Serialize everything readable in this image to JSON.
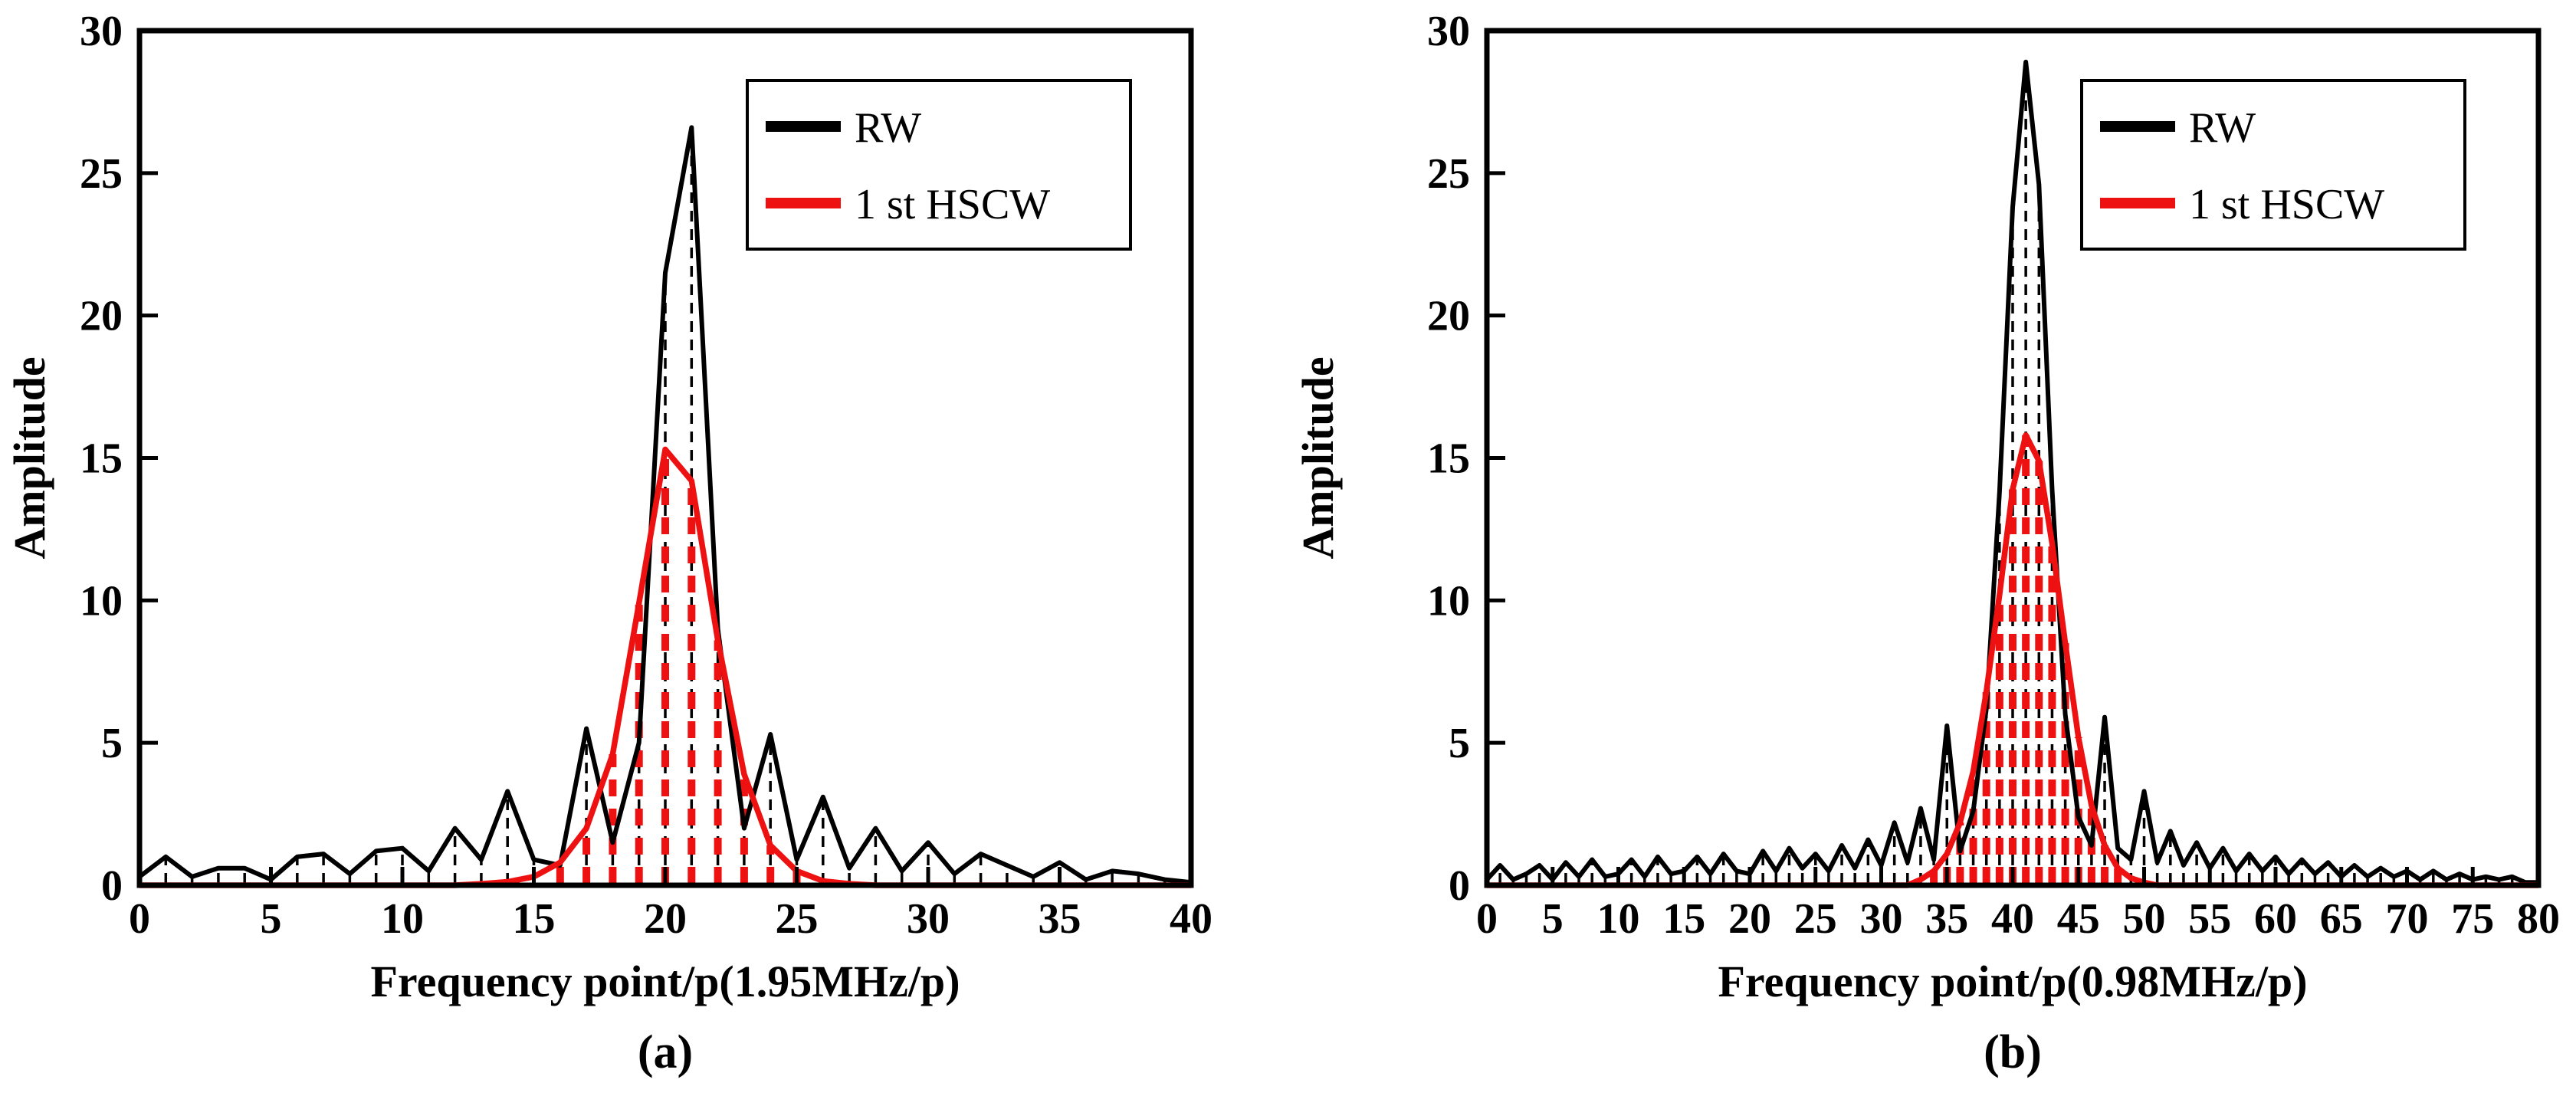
{
  "colors": {
    "rw": "#000000",
    "hscw": "#ee1111",
    "axis": "#000000",
    "background": "#ffffff"
  },
  "chart_data": [
    {
      "type": "line",
      "caption": "(a)",
      "xlabel": "Frequency point/p(1.95MHz/p)",
      "ylabel": "Amplitude",
      "xlim": [
        0,
        40
      ],
      "ylim": [
        0,
        30
      ],
      "xtick_step": 5,
      "ytick_step": 5,
      "grid": false,
      "legend": {
        "position": "top-right-inside",
        "entries": [
          "RW",
          "1 st HSCW"
        ]
      },
      "series": [
        {
          "name": "RW",
          "color": "#000000",
          "line": "solid",
          "stems": "dashed",
          "values": [
            0.3,
            1.0,
            0.3,
            0.6,
            0.6,
            0.2,
            1.0,
            1.1,
            0.4,
            1.2,
            1.3,
            0.5,
            2.0,
            0.9,
            3.3,
            0.9,
            0.7,
            5.5,
            1.5,
            5.0,
            21.5,
            26.6,
            9.0,
            2.0,
            5.3,
            0.9,
            3.1,
            0.6,
            2.0,
            0.5,
            1.5,
            0.4,
            1.1,
            0.7,
            0.3,
            0.8,
            0.2,
            0.5,
            0.4,
            0.2,
            0.1
          ]
        },
        {
          "name": "1 st HSCW",
          "color": "#ee1111",
          "line": "solid",
          "stems": "dashed",
          "values": [
            0,
            0,
            0,
            0,
            0,
            0,
            0,
            0,
            0,
            0,
            0,
            0,
            0,
            0.05,
            0.12,
            0.3,
            0.8,
            2.0,
            4.6,
            9.9,
            15.3,
            14.2,
            8.6,
            3.9,
            1.4,
            0.5,
            0.15,
            0.05,
            0,
            0,
            0,
            0,
            0,
            0,
            0,
            0,
            0,
            0,
            0,
            0,
            0
          ]
        }
      ]
    },
    {
      "type": "line",
      "caption": "(b)",
      "xlabel": "Frequency point/p(0.98MHz/p)",
      "ylabel": "Amplitude",
      "xlim": [
        0,
        80
      ],
      "ylim": [
        0,
        30
      ],
      "xtick_step": 5,
      "ytick_step": 5,
      "grid": false,
      "legend": {
        "position": "top-right-inside",
        "entries": [
          "RW",
          "1 st HSCW"
        ]
      },
      "series": [
        {
          "name": "RW",
          "color": "#000000",
          "line": "solid",
          "stems": "dashed",
          "values": [
            0.2,
            0.7,
            0.2,
            0.4,
            0.7,
            0.2,
            0.8,
            0.3,
            0.9,
            0.3,
            0.4,
            0.9,
            0.3,
            1.0,
            0.4,
            0.5,
            1.0,
            0.4,
            1.1,
            0.5,
            0.4,
            1.2,
            0.5,
            1.3,
            0.6,
            1.1,
            0.5,
            1.4,
            0.6,
            1.6,
            0.7,
            2.2,
            0.8,
            2.7,
            0.9,
            5.6,
            1.2,
            2.6,
            6.2,
            13.8,
            23.8,
            28.9,
            24.6,
            13.9,
            6.0,
            2.4,
            1.4,
            5.9,
            1.3,
            0.9,
            3.3,
            0.8,
            1.9,
            0.7,
            1.5,
            0.6,
            1.3,
            0.5,
            1.1,
            0.5,
            1.0,
            0.4,
            0.9,
            0.4,
            0.8,
            0.3,
            0.7,
            0.3,
            0.6,
            0.3,
            0.5,
            0.2,
            0.5,
            0.2,
            0.4,
            0.2,
            0.3,
            0.2,
            0.3,
            0.1,
            0.1
          ]
        },
        {
          "name": "1 st HSCW",
          "color": "#ee1111",
          "line": "solid",
          "stems": "dashed",
          "values": [
            0,
            0,
            0,
            0,
            0,
            0,
            0,
            0,
            0,
            0,
            0,
            0,
            0,
            0,
            0,
            0,
            0,
            0,
            0,
            0,
            0,
            0,
            0,
            0,
            0,
            0,
            0,
            0,
            0,
            0,
            0,
            0,
            0,
            0.2,
            0.5,
            1.1,
            2.2,
            4.0,
            6.8,
            10.2,
            13.9,
            15.8,
            14.9,
            12.0,
            8.5,
            5.2,
            2.8,
            1.4,
            0.6,
            0.25,
            0.1,
            0,
            0,
            0,
            0,
            0,
            0,
            0,
            0,
            0,
            0,
            0,
            0,
            0,
            0,
            0,
            0,
            0,
            0,
            0,
            0,
            0,
            0,
            0,
            0,
            0,
            0,
            0,
            0,
            0,
            0
          ]
        }
      ]
    }
  ]
}
